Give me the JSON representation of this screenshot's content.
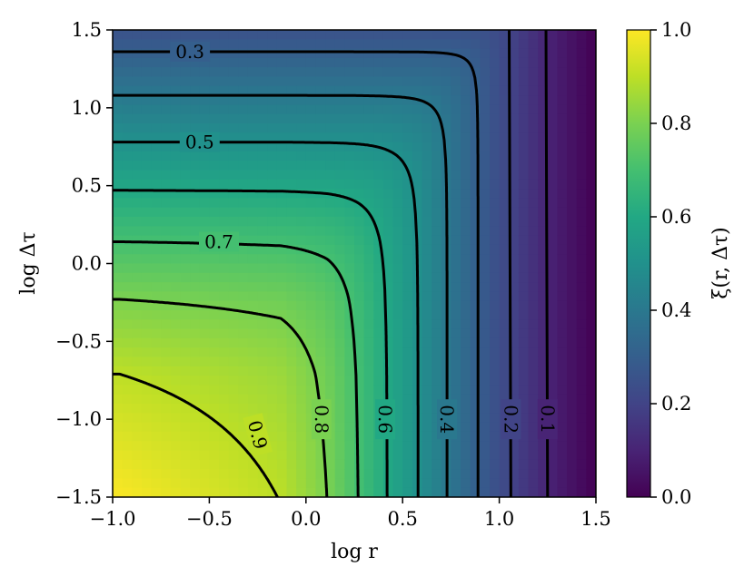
{
  "chart_data": {
    "type": "heatmap",
    "function_shown": "xi(r, Δτ), decreasing from 1 at small log r and small log Δτ to 0 at large values",
    "x_axis": {
      "label": "log r",
      "range": [
        -1.0,
        1.5
      ],
      "ticks": [
        -1.0,
        -0.5,
        0.0,
        0.5,
        1.0,
        1.5
      ],
      "tick_labels": [
        "−1.0",
        "−0.5",
        "0.0",
        "0.5",
        "1.0",
        "1.5"
      ]
    },
    "y_axis": {
      "label": "log Δτ",
      "range": [
        -1.5,
        1.5
      ],
      "ticks": [
        -1.5,
        -1.0,
        -0.5,
        0.0,
        0.5,
        1.0,
        1.5
      ],
      "tick_labels": [
        "−1.5",
        "−1.0",
        "−0.5",
        "0.0",
        "0.5",
        "1.0",
        "1.5"
      ]
    },
    "colorbar": {
      "label": "ξ(r, Δτ)",
      "range": [
        0.0,
        1.0
      ],
      "ticks": [
        0.0,
        0.2,
        0.4,
        0.6,
        0.8,
        1.0
      ],
      "tick_labels": [
        "0.0",
        "0.2",
        "0.4",
        "0.6",
        "0.8",
        "1.0"
      ],
      "colormap": "viridis"
    },
    "contours": [
      {
        "level": 0.1,
        "label": "0.1",
        "vertical_log_r": 1.25,
        "horizontal_log_dtau": null
      },
      {
        "level": 0.2,
        "label": "0.2",
        "vertical_log_r": 1.06,
        "horizontal_log_dtau": null
      },
      {
        "level": 0.3,
        "label": "0.3",
        "vertical_log_r": 0.89,
        "horizontal_log_dtau": 1.36
      },
      {
        "level": 0.4,
        "label": "0.4",
        "vertical_log_r": 0.73,
        "horizontal_log_dtau": 1.08
      },
      {
        "level": 0.5,
        "label": "0.5",
        "vertical_log_r": 0.58,
        "horizontal_log_dtau": 0.78
      },
      {
        "level": 0.6,
        "label": "0.6",
        "vertical_log_r": 0.42,
        "horizontal_log_dtau": 0.47
      },
      {
        "level": 0.7,
        "label": "0.7",
        "vertical_log_r": 0.27,
        "horizontal_log_dtau": 0.14
      },
      {
        "level": 0.8,
        "label": "0.8",
        "vertical_log_r": 0.11,
        "horizontal_log_dtau": -0.23
      },
      {
        "level": 0.9,
        "label": "0.9",
        "vertical_log_r": -0.13,
        "horizontal_log_dtau": -0.71
      }
    ],
    "grid": false,
    "title": ""
  }
}
